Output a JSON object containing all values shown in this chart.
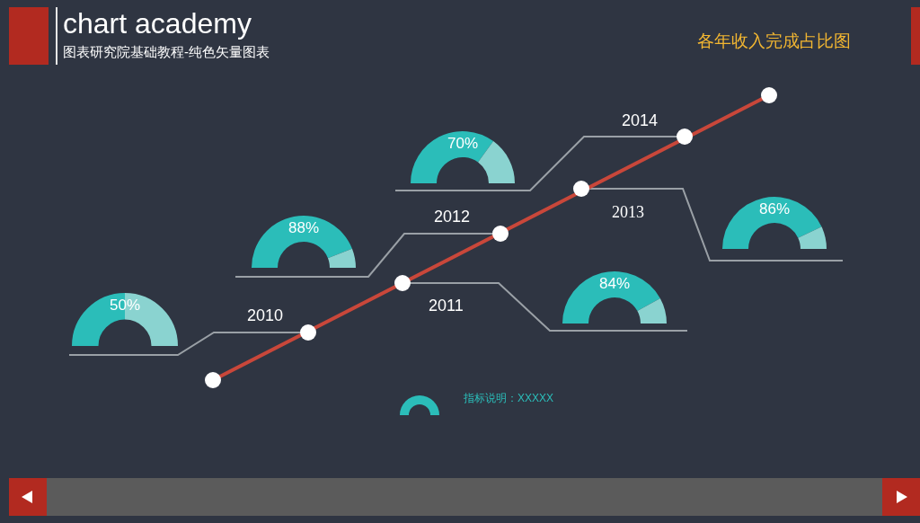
{
  "chart_data": [
    {
      "type": "other",
      "title": "chart academy",
      "subtitle": "图表研究院基础教程-纯色矢量图表",
      "annotations": [
        "各年收入完成占比图",
        "指标说明：XXXXX"
      ]
    },
    {
      "type": "donut",
      "title": "2010",
      "categories": [
        null,
        null
      ],
      "values": [
        50,
        50
      ],
      "colors": [
        "#2bbdb9",
        "#8ad3d0"
      ],
      "value_labels": [
        "50%",
        null
      ]
    },
    {
      "type": "donut",
      "title": "2011",
      "categories": [
        null,
        null
      ],
      "values": [
        84,
        16
      ],
      "colors": [
        "#2bbdb9",
        "#8ad3d0"
      ],
      "value_labels": [
        "84%",
        null
      ]
    },
    {
      "type": "donut",
      "title": "2012",
      "categories": [
        null,
        null
      ],
      "values": [
        88,
        12
      ],
      "colors": [
        "#2bbdb9",
        "#8ad3d0"
      ],
      "value_labels": [
        "88%",
        null
      ]
    },
    {
      "type": "donut",
      "title": "2013",
      "categories": [
        null,
        null
      ],
      "values": [
        86,
        14
      ],
      "colors": [
        "#2bbdb9",
        "#8ad3d0"
      ],
      "value_labels": [
        "86%",
        null
      ]
    },
    {
      "type": "donut",
      "title": "2014",
      "categories": [
        null,
        null
      ],
      "values": [
        70,
        30
      ],
      "colors": [
        "#2bbdb9",
        "#8ad3d0"
      ],
      "value_labels": [
        "70%",
        null
      ]
    }
  ]
}
